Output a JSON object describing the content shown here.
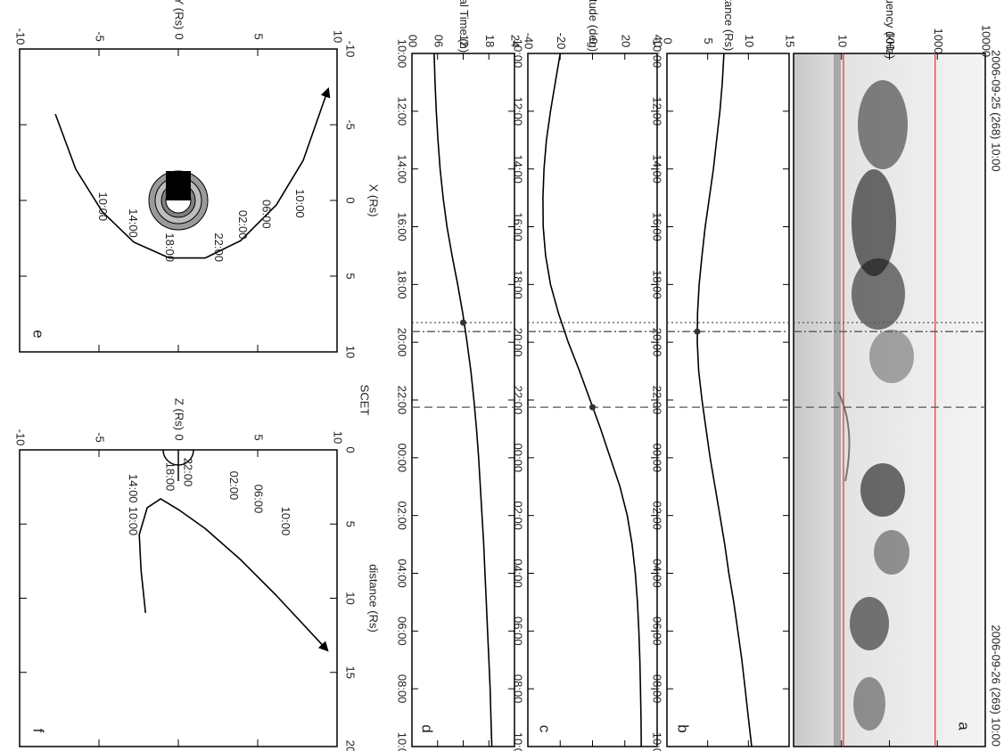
{
  "chart_data": [
    {
      "type": "spectrogram",
      "panel_label": "a",
      "ylabel": "Frequency (kHz)",
      "start_label": "2006-09-25 (268) 10:00",
      "end_label": "2006-09-26 (269) 10:00",
      "xlim": [
        10,
        34
      ],
      "ylim": [
        1,
        10000
      ],
      "log_scale": true,
      "yticks": [
        10,
        100,
        1000,
        10000
      ],
      "hlines": [
        11,
        900
      ],
      "hline_color": "#e8302e",
      "vlines": [
        {
          "x": 19.32,
          "style": "dotted"
        },
        {
          "x": 19.63,
          "style": "dashdot"
        },
        {
          "x": 22.25,
          "style": "dashed"
        }
      ]
    },
    {
      "type": "line",
      "panel_label": "b",
      "ylabel": "Distance (Rs)",
      "color": "#000000",
      "x": [
        10,
        11,
        12,
        13,
        14,
        15,
        16,
        17,
        18,
        19,
        20,
        21,
        22,
        23,
        24,
        25,
        26,
        27,
        28,
        29,
        30,
        31,
        32,
        33,
        34
      ],
      "values": [
        7.0,
        6.8,
        6.5,
        6.1,
        5.7,
        5.2,
        4.7,
        4.3,
        3.95,
        3.75,
        3.72,
        3.9,
        4.3,
        4.8,
        5.3,
        5.9,
        6.5,
        7.1,
        7.6,
        8.2,
        8.7,
        9.2,
        9.6,
        10.0,
        10.4
      ],
      "xlim": [
        10,
        34
      ],
      "ylim": [
        0,
        15
      ],
      "yticks": [
        0,
        5,
        10,
        15
      ],
      "xticks": [
        {
          "value": 10,
          "label": "10:00"
        },
        {
          "value": 12,
          "label": "12:00"
        },
        {
          "value": 14,
          "label": "14:00"
        },
        {
          "value": 16,
          "label": "16:00"
        },
        {
          "value": 18,
          "label": "18:00"
        },
        {
          "value": 20,
          "label": "20:00"
        },
        {
          "value": 22,
          "label": "22:00"
        },
        {
          "value": 24,
          "label": "00:00"
        },
        {
          "value": 26,
          "label": "02:00"
        },
        {
          "value": 28,
          "label": "04:00"
        },
        {
          "value": 30,
          "label": "06:00"
        },
        {
          "value": 32,
          "label": "08:00"
        },
        {
          "value": 34,
          "label": "10:00"
        }
      ],
      "vlines": [
        {
          "x": 19.32,
          "style": "dotted"
        },
        {
          "x": 19.63,
          "style": "dashdot"
        },
        {
          "x": 22.25,
          "style": "dashed"
        }
      ],
      "highlight": {
        "x": 19.63,
        "y": 3.72
      }
    },
    {
      "type": "line",
      "panel_label": "c",
      "ylabel": "Latitude (deg)",
      "color": "#000000",
      "x": [
        10,
        11,
        12,
        13,
        14,
        15,
        16,
        17,
        18,
        19,
        20,
        21,
        22,
        23,
        24,
        25,
        26,
        27,
        28,
        29,
        30,
        31,
        32,
        33,
        34
      ],
      "values": [
        -20,
        -23,
        -26,
        -28.5,
        -30,
        -30.7,
        -30.5,
        -29,
        -26,
        -21,
        -15,
        -8,
        -1.5,
        5,
        11,
        17,
        21.5,
        24.5,
        26.5,
        27.8,
        28.7,
        29.3,
        29.7,
        30,
        30.2
      ],
      "xlim": [
        10,
        34
      ],
      "ylim": [
        -40,
        40
      ],
      "yticks": [
        -40,
        -20,
        0,
        20,
        40
      ],
      "xticks": [
        {
          "value": 10,
          "label": "10:00"
        },
        {
          "value": 12,
          "label": "12:00"
        },
        {
          "value": 14,
          "label": "14:00"
        },
        {
          "value": 16,
          "label": "16:00"
        },
        {
          "value": 18,
          "label": "18:00"
        },
        {
          "value": 20,
          "label": "20:00"
        },
        {
          "value": 22,
          "label": "22:00"
        },
        {
          "value": 24,
          "label": "00:00"
        },
        {
          "value": 26,
          "label": "02:00"
        },
        {
          "value": 28,
          "label": "04:00"
        },
        {
          "value": 30,
          "label": "06:00"
        },
        {
          "value": 32,
          "label": "08:00"
        },
        {
          "value": 34,
          "label": "10:00"
        }
      ],
      "vlines": [
        {
          "x": 19.32,
          "style": "dotted"
        },
        {
          "x": 19.63,
          "style": "dashdot"
        },
        {
          "x": 22.25,
          "style": "dashed"
        }
      ],
      "highlight": {
        "x": 22.25,
        "y": 0
      }
    },
    {
      "type": "line",
      "panel_label": "d",
      "ylabel": "Local Time (h)",
      "xlabel": "SCET",
      "color": "#000000",
      "x": [
        10,
        11,
        12,
        13,
        14,
        15,
        16,
        17,
        18,
        19,
        20,
        21,
        22,
        23,
        24,
        25,
        26,
        27,
        28,
        29,
        30,
        31,
        32,
        33,
        34
      ],
      "values": [
        5.2,
        5.4,
        5.7,
        6.1,
        6.6,
        7.3,
        8.2,
        9.4,
        10.7,
        11.9,
        12.9,
        13.8,
        14.5,
        15.1,
        15.6,
        16.0,
        16.4,
        16.8,
        17.1,
        17.4,
        17.7,
        18.0,
        18.3,
        18.5,
        18.7
      ],
      "xlim": [
        10,
        34
      ],
      "ylim": [
        0,
        24
      ],
      "yticks": [
        {
          "value": 0,
          "label": "00"
        },
        {
          "value": 6,
          "label": "06"
        },
        12,
        18,
        24
      ],
      "xticks": [
        {
          "value": 10,
          "label": "10:00"
        },
        {
          "value": 12,
          "label": "12:00"
        },
        {
          "value": 14,
          "label": "14:00"
        },
        {
          "value": 16,
          "label": "16:00"
        },
        {
          "value": 18,
          "label": "18:00"
        },
        {
          "value": 20,
          "label": "20:00"
        },
        {
          "value": 22,
          "label": "22:00"
        },
        {
          "value": 24,
          "label": "00:00"
        },
        {
          "value": 26,
          "label": "02:00"
        },
        {
          "value": 28,
          "label": "04:00"
        },
        {
          "value": 30,
          "label": "06:00"
        },
        {
          "value": 32,
          "label": "08:00"
        },
        {
          "value": 34,
          "label": "10:00"
        }
      ],
      "vlines": [
        {
          "x": 19.32,
          "style": "dotted"
        },
        {
          "x": 19.63,
          "style": "dashdot"
        },
        {
          "x": 22.25,
          "style": "dashed"
        }
      ],
      "highlight": {
        "x": 19.32,
        "y": 12
      }
    },
    {
      "type": "trajectory",
      "panel_label": "e",
      "xlabel": "X (Rs)",
      "ylabel": "Y (Rs)",
      "color": "#000000",
      "x": [
        -5.7,
        -2.06,
        0.76,
        2.76,
        3.8,
        3.8,
        2.65,
        0.29,
        -2.65,
        -7.35
      ],
      "y": [
        -7.75,
        -6.46,
        -4.78,
        -2.8,
        -0.56,
        1.69,
        3.93,
        6.18,
        7.87,
        9.44
      ],
      "xlim": [
        -10,
        10
      ],
      "ylim": [
        -10,
        10
      ],
      "xticks": [
        -10,
        -5,
        0,
        5,
        10
      ],
      "yticks": [
        -10,
        -5,
        0,
        5,
        10
      ],
      "annotations": [
        {
          "text": "10:00",
          "x": 0.4,
          "y": -4.8
        },
        {
          "text": "14:00",
          "x": 1.5,
          "y": -2.9
        },
        {
          "text": "18:00",
          "x": 3.1,
          "y": -0.6
        },
        {
          "text": "22:00",
          "x": 3.1,
          "y": 2.5
        },
        {
          "text": "02:00",
          "x": 1.6,
          "y": 4.0
        },
        {
          "text": "06:00",
          "x": 0.9,
          "y": 5.5
        },
        {
          "text": "10:00",
          "x": 0.2,
          "y": 7.6
        }
      ]
    },
    {
      "type": "trajectory",
      "panel_label": "f",
      "xlabel": "distance (Rs)",
      "ylabel": "Z (Rs)",
      "color": "#000000",
      "x": [
        10.99,
        8.11,
        5.71,
        3.9,
        3.3,
        4.02,
        5.29,
        7.39,
        9.79,
        13.51
      ],
      "y": [
        -2.07,
        -2.35,
        -2.46,
        -1.96,
        -1.12,
        0,
        1.68,
        3.91,
        6.15,
        9.39
      ],
      "xlim": [
        0,
        20
      ],
      "ylim": [
        -10,
        10
      ],
      "xticks": [
        0,
        5,
        10,
        15,
        20
      ],
      "yticks": [
        -10,
        -5,
        0,
        5,
        10
      ],
      "annotations": [
        {
          "text": "10:00",
          "x": 4.8,
          "y": -2.9
        },
        {
          "text": "14:00",
          "x": 2.6,
          "y": -2.9
        },
        {
          "text": "18:00",
          "x": 1.8,
          "y": -0.56
        },
        {
          "text": "22:00",
          "x": 1.5,
          "y": 0.56
        },
        {
          "text": "02:00",
          "x": 2.4,
          "y": 3.46
        },
        {
          "text": "06:00",
          "x": 3.3,
          "y": 5.0
        },
        {
          "text": "10:00",
          "x": 4.8,
          "y": 6.7
        }
      ]
    }
  ]
}
